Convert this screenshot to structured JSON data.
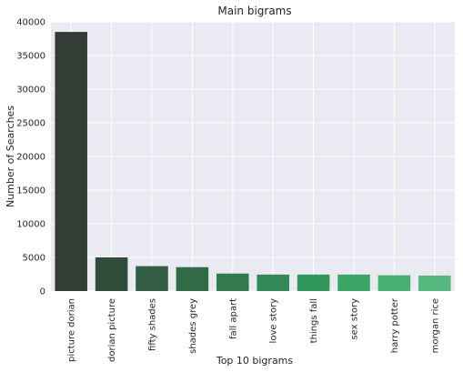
{
  "chart_data": {
    "type": "bar",
    "title": "Main bigrams",
    "xlabel": "Top 10 bigrams",
    "ylabel": "Number of Searches",
    "categories": [
      "picture dorian",
      "dorian picture",
      "fifty shades",
      "shades grey",
      "fall apart",
      "love story",
      "things fall",
      "sex story",
      "harry potter",
      "morgan rice"
    ],
    "values": [
      38500,
      5000,
      3700,
      3550,
      2600,
      2450,
      2450,
      2450,
      2350,
      2300
    ],
    "ylim": [
      0,
      40000
    ],
    "yticks": [
      "0",
      "5000",
      "10000",
      "15000",
      "20000",
      "25000",
      "30000",
      "35000",
      "40000"
    ],
    "grid": true,
    "background_color": "#eaeaf2",
    "bar_colors": [
      "#343d35",
      "#324c3b",
      "#325d43",
      "#326a48",
      "#327a4e",
      "#318955",
      "#32975b",
      "#3aa565",
      "#46b070",
      "#55b97f"
    ]
  }
}
